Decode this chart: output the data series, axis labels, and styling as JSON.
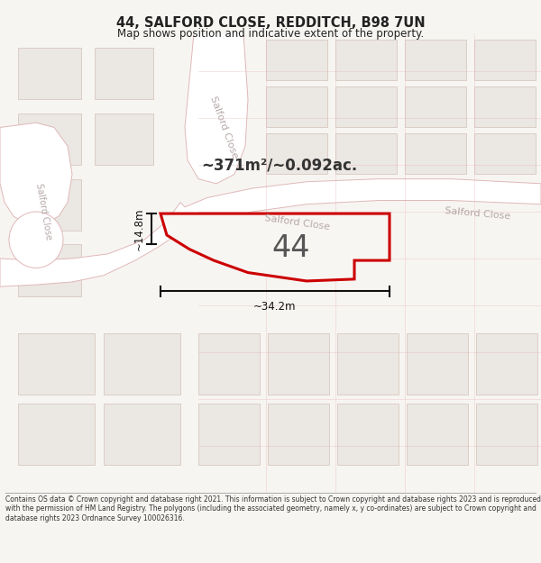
{
  "title": "44, SALFORD CLOSE, REDDITCH, B98 7UN",
  "subtitle": "Map shows position and indicative extent of the property.",
  "area_text": "~371m²/~0.092ac.",
  "plot_number": "44",
  "dim_width": "~34.2m",
  "dim_height": "~14.8m",
  "footer": "Contains OS data © Crown copyright and database right 2021. This information is subject to Crown copyright and database rights 2023 and is reproduced with the permission of HM Land Registry. The polygons (including the associated geometry, namely x, y co-ordinates) are subject to Crown copyright and database rights 2023 Ordnance Survey 100026316.",
  "bg_color": "#f7f5f2",
  "map_bg": "#f7f5f2",
  "road_fill": "#ffffff",
  "road_edge": "#e0b8b8",
  "plot_fill": "#f0eeec",
  "plot_edge": "#cc0000",
  "block_fill": "#ebe7e3",
  "block_edge": "#d8c8c0",
  "road_text_color": "#b0a0a0",
  "title_color": "#222222",
  "footer_color": "#333333",
  "dim_color": "#111111",
  "area_text_color": "#333333"
}
